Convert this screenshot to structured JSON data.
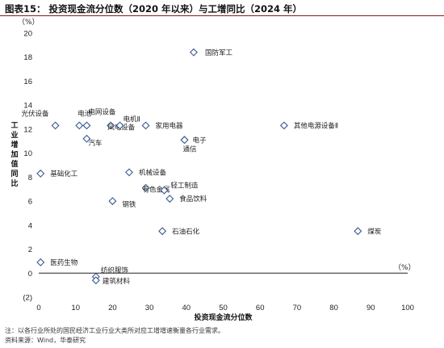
{
  "figure": {
    "title": "图表15： 投资现金流分位数（2020 年以来）与工增同比（2024 年）",
    "note": "注：以各行业所处的国民经济工业行业大类所对应工增增速衡量各行业需求。",
    "source": "资料来源：Wind，华泰研究"
  },
  "chart_data": {
    "type": "scatter",
    "title": "投资现金流分位数（2020 年以来）与工增同比（2024 年）",
    "xlabel": "投资现金流分位数",
    "ylabel": "工业增加值同比",
    "x_unit": "（%）",
    "y_unit": "（%）",
    "xlim": [
      0,
      100
    ],
    "ylim": [
      -2,
      20
    ],
    "x_ticks": [
      "0",
      "10",
      "20",
      "30",
      "40",
      "50",
      "60",
      "70",
      "80",
      "90",
      "100"
    ],
    "y_ticks": [
      "(2)",
      "0",
      "2",
      "4",
      "6",
      "8",
      "10",
      "12",
      "14",
      "16",
      "18",
      "20"
    ],
    "marker_color": "#3a5a92",
    "points": [
      {
        "label": "国防军工",
        "x": 42,
        "y": 18.4
      },
      {
        "label": "光伏设备",
        "x": 4.5,
        "y": 12.3
      },
      {
        "label": "电池",
        "x": 11,
        "y": 12.3
      },
      {
        "label": "电网设备",
        "x": 13,
        "y": 12.3
      },
      {
        "label": "风电设备",
        "x": 19.5,
        "y": 12.3
      },
      {
        "label": "电机Ⅱ",
        "x": 22,
        "y": 12.3
      },
      {
        "label": "家用电器",
        "x": 29,
        "y": 12.3
      },
      {
        "label": "其他电源设备Ⅱ",
        "x": 66.5,
        "y": 12.3
      },
      {
        "label": "汽车",
        "x": 13,
        "y": 11.2
      },
      {
        "label": "通信",
        "x": 39.5,
        "y": 11.1
      },
      {
        "label": "电子",
        "x": 39.5,
        "y": 11.1
      },
      {
        "label": "基础化工",
        "x": 0.5,
        "y": 8.3
      },
      {
        "label": "机械设备",
        "x": 24.5,
        "y": 8.4
      },
      {
        "label": "有色金属",
        "x": 29,
        "y": 7.1
      },
      {
        "label": "轻工制造",
        "x": 34,
        "y": 6.9
      },
      {
        "label": "钢铁",
        "x": 20,
        "y": 6.0
      },
      {
        "label": "食品饮料",
        "x": 35.5,
        "y": 6.2
      },
      {
        "label": "石油石化",
        "x": 33.5,
        "y": 3.5
      },
      {
        "label": "煤炭",
        "x": 86.5,
        "y": 3.5
      },
      {
        "label": "医药生物",
        "x": 0.5,
        "y": 0.9
      },
      {
        "label": "纺织服饰",
        "x": 15.5,
        "y": -0.3
      },
      {
        "label": "建筑材料",
        "x": 15.5,
        "y": -0.6
      }
    ]
  }
}
